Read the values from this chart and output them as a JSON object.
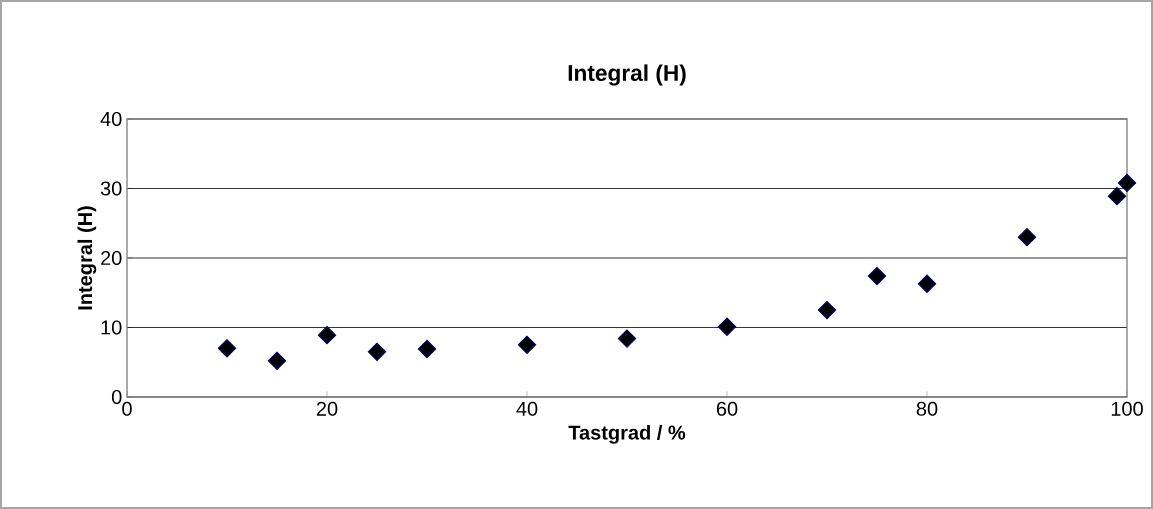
{
  "chart_data": {
    "type": "scatter",
    "title": "Integral (H)",
    "xlabel": "Tastgrad / %",
    "ylabel": "Integral (H)",
    "x": [
      10,
      15,
      20,
      25,
      30,
      40,
      50,
      60,
      70,
      75,
      80,
      90,
      99,
      100
    ],
    "values": [
      7.0,
      5.2,
      8.9,
      6.5,
      6.9,
      7.5,
      8.4,
      10.1,
      12.5,
      17.4,
      16.3,
      23.0,
      28.9,
      30.8
    ],
    "color": "#000000",
    "xlim": [
      0,
      100
    ],
    "ylim": [
      0,
      40
    ],
    "xticks": [
      0,
      20,
      40,
      60,
      80,
      100
    ],
    "yticks": [
      0,
      10,
      20,
      30,
      40
    ],
    "grid": "y",
    "marker": "diamond"
  }
}
